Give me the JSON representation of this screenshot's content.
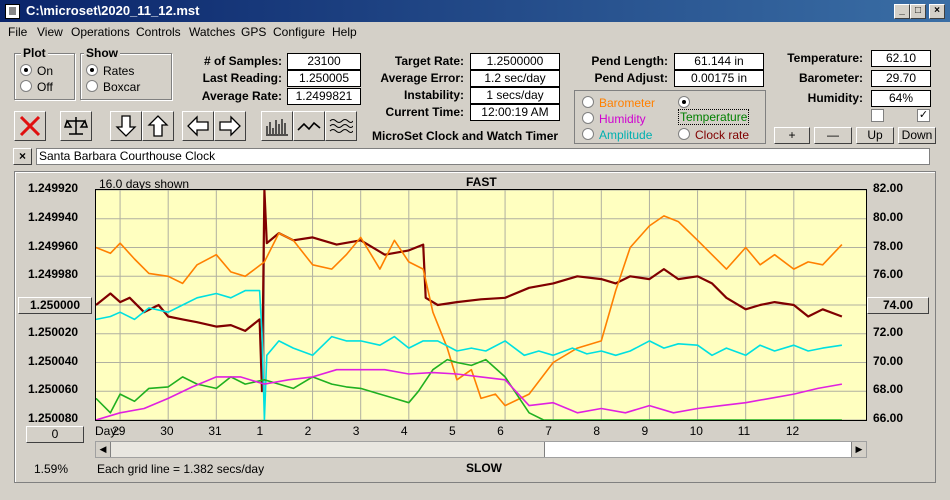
{
  "window": {
    "title": "C:\\microset\\2020_11_12.mst"
  },
  "menu": [
    "File",
    "View",
    "Operations",
    "Controls",
    "Watches",
    "GPS",
    "Configure",
    "Help"
  ],
  "plot_group": {
    "title": "Plot",
    "options": [
      "On",
      "Off"
    ],
    "selected": "On"
  },
  "show_group": {
    "title": "Show",
    "options": [
      "Rates",
      "Boxcar"
    ],
    "selected": "Rates"
  },
  "stats": [
    {
      "label": "# of Samples:",
      "value": "23100"
    },
    {
      "label": "Last Reading:",
      "value": "1.250005"
    },
    {
      "label": "Average Rate:",
      "value": "1.2499821"
    }
  ],
  "rates": [
    {
      "label": "Target Rate:",
      "value": "1.2500000"
    },
    {
      "label": "Average Error:",
      "value": "1.2 sec/day"
    },
    {
      "label": "Instability:",
      "value": "1 secs/day"
    },
    {
      "label": "Current Time:",
      "value": "12:00:19 AM"
    }
  ],
  "pend": [
    {
      "label": "Pend Length:",
      "value": "61.144 in"
    },
    {
      "label": "Pend Adjust:",
      "value": "0.00175 in"
    }
  ],
  "env": [
    {
      "label": "Temperature:",
      "value": "62.10"
    },
    {
      "label": "Barometer:",
      "value": "29.70"
    },
    {
      "label": "Humidity:",
      "value": "64%"
    }
  ],
  "app_caption": "MicroSet Clock and Watch Timer",
  "aux_options": [
    {
      "label": "Barometer",
      "color": "#ff8000",
      "selected": false
    },
    {
      "label": "Temperature",
      "color": "#008000",
      "selected": true
    },
    {
      "label": "Humidity",
      "color": "#d000d0",
      "selected": false
    },
    {
      "label": "Clock rate",
      "color": "#800000",
      "selected": false
    },
    {
      "label": "Amplitude",
      "color": "#00b0b0",
      "selected": false
    }
  ],
  "adjust_buttons": [
    "+",
    "—",
    "Up",
    "Down"
  ],
  "checkboxes": [
    {
      "checked": false
    },
    {
      "checked": true
    }
  ],
  "clock_name": "Santa Barbara Courthouse Clock",
  "chart_data": {
    "type": "line",
    "top_label": "FAST",
    "bottom_label": "SLOW",
    "days_shown": "16.0 days shown",
    "grid_note": "Each grid line = 1.382 secs/day",
    "percent": "1.59%",
    "x_label": "Day:",
    "x_ticks": [
      "29",
      "30",
      "31",
      "1",
      "2",
      "3",
      "4",
      "5",
      "6",
      "7",
      "8",
      "9",
      "10",
      "11",
      "12"
    ],
    "left_ticks": [
      "1.249920",
      "1.249940",
      "1.249960",
      "1.249980",
      "1.250000",
      "1.250020",
      "1.250040",
      "1.250060",
      "1.250080"
    ],
    "right_ticks": [
      "82.00",
      "80.00",
      "78.00",
      "76.00",
      "74.00",
      "72.00",
      "70.00",
      "68.00",
      "66.00"
    ],
    "left_center_button": "1.250000",
    "right_center_button": "74.00",
    "left_zero_button": "0",
    "left_range": [
      1.24992,
      1.25008
    ],
    "right_range": [
      82,
      66
    ],
    "x_range": [
      28.5,
      44.5
    ],
    "series": [
      {
        "name": "Clock rate",
        "color": "#800000",
        "x": [
          28.5,
          28.8,
          29.0,
          29.2,
          29.5,
          29.8,
          30.0,
          30.3,
          30.6,
          31.0,
          31.3,
          31.6,
          31.9,
          31.95,
          32.0,
          32.05,
          32.3,
          32.6,
          33.0,
          33.5,
          34.0,
          34.5,
          35.0,
          35.3,
          35.35,
          35.6,
          36.0,
          36.5,
          37.0,
          37.5,
          38.0,
          38.5,
          39.0,
          39.3,
          39.6,
          40.0,
          40.3,
          40.6,
          41.0,
          41.3,
          41.6,
          42.0,
          42.3,
          42.6,
          43.0,
          43.3,
          43.6,
          44.0
        ],
        "y": [
          1.25,
          1.249992,
          1.249998,
          1.249995,
          1.250005,
          1.25,
          1.250008,
          1.25001,
          1.250012,
          1.250015,
          1.250014,
          1.250018,
          1.25001,
          1.25006,
          1.24992,
          1.249957,
          1.24995,
          1.249955,
          1.249953,
          1.249958,
          1.249955,
          1.249965,
          1.249962,
          1.249958,
          1.249995,
          1.25,
          1.249998,
          1.249996,
          1.249995,
          1.249988,
          1.249985,
          1.24998,
          1.249982,
          1.249985,
          1.24998,
          1.249982,
          1.249975,
          1.249982,
          1.24998,
          1.249985,
          1.249995,
          1.250003,
          1.25,
          1.249998,
          1.25,
          1.250008,
          1.250003,
          1.250008
        ]
      },
      {
        "name": "Barometer",
        "color": "#ff8000",
        "x": [
          28.5,
          28.8,
          29.0,
          29.3,
          29.6,
          30.0,
          30.3,
          30.6,
          31.0,
          31.3,
          31.6,
          32.0,
          32.3,
          32.6,
          33.0,
          33.4,
          33.7,
          34.0,
          34.4,
          34.7,
          35.0,
          35.3,
          35.5,
          35.8,
          36.0,
          36.3,
          36.5,
          36.8,
          37.0,
          37.5,
          38.0,
          38.5,
          39.0,
          39.3,
          39.6,
          40.0,
          40.3,
          40.6,
          41.0,
          41.3,
          41.6,
          42.0,
          42.3,
          42.6,
          43.0,
          43.3,
          43.6,
          44.0
        ],
        "y": [
          78.0,
          77.6,
          78.3,
          77.2,
          76.2,
          76.0,
          75.5,
          76.8,
          77.5,
          76.3,
          76.0,
          77.0,
          79.0,
          78.5,
          76.8,
          76.5,
          77.5,
          78.7,
          76.5,
          78.5,
          77.0,
          76.5,
          73.5,
          71.0,
          68.8,
          69.5,
          67.5,
          67.8,
          67.0,
          67.8,
          70.0,
          71.0,
          71.5,
          75.0,
          78.0,
          79.5,
          80.2,
          79.8,
          78.5,
          77.5,
          76.5,
          78.0,
          76.8,
          77.5,
          76.5,
          77.0,
          76.8,
          78.2
        ]
      },
      {
        "name": "Amplitude",
        "color": "#00e0e0",
        "x": [
          28.5,
          28.8,
          29.0,
          29.3,
          29.6,
          30.0,
          30.3,
          30.6,
          31.0,
          31.3,
          31.6,
          31.9,
          31.95,
          32.0,
          32.05,
          32.3,
          32.6,
          33.0,
          33.4,
          33.7,
          34.0,
          34.4,
          34.7,
          35.0,
          35.3,
          35.6,
          36.0,
          36.3,
          36.6,
          37.0,
          37.4,
          37.7,
          38.0,
          38.4,
          38.7,
          39.0,
          39.3,
          39.6,
          40.0,
          40.3,
          40.6,
          41.0,
          41.3,
          41.6,
          42.0,
          42.3,
          42.6,
          43.0,
          43.3,
          43.6,
          44.0
        ],
        "y": [
          73.0,
          73.2,
          73.5,
          73.0,
          73.8,
          73.5,
          74.0,
          74.5,
          74.8,
          74.5,
          75.0,
          75.0,
          72.0,
          66.0,
          70.5,
          71.5,
          71.0,
          70.5,
          71.8,
          71.5,
          71.5,
          71.2,
          71.8,
          71.0,
          71.5,
          71.5,
          70.8,
          71.0,
          70.8,
          71.5,
          70.5,
          70.8,
          70.5,
          71.0,
          70.6,
          70.8,
          70.5,
          70.8,
          71.5,
          71.0,
          71.3,
          71.2,
          70.5,
          71.0,
          70.5,
          71.2,
          70.8,
          71.2,
          70.8,
          71.0,
          71.2
        ]
      },
      {
        "name": "Temperature",
        "color": "#20b020",
        "x": [
          28.5,
          28.8,
          29.0,
          29.3,
          29.6,
          30.0,
          30.3,
          30.6,
          31.0,
          31.3,
          31.6,
          32.0,
          32.3,
          32.6,
          33.0,
          33.4,
          33.7,
          34.0,
          34.4,
          34.7,
          35.0,
          35.2,
          35.5,
          35.8,
          36.0,
          36.3,
          36.6,
          37.0,
          37.2,
          37.5,
          37.8,
          38.0,
          39.0,
          40.0,
          41.0,
          42.0,
          43.0,
          44.0
        ],
        "y": [
          67.5,
          66.5,
          67.8,
          67.3,
          68.2,
          68.3,
          69.0,
          68.5,
          68.2,
          69.0,
          68.5,
          68.8,
          68.5,
          68.2,
          69.0,
          68.5,
          68.3,
          68.2,
          67.8,
          67.5,
          67.2,
          68.0,
          69.5,
          70.2,
          70.0,
          69.8,
          70.2,
          69.0,
          68.0,
          66.5,
          66.0,
          66.0,
          66.0,
          66.0,
          66.0,
          66.0,
          66.0,
          66.0
        ]
      },
      {
        "name": "Humidity",
        "color": "#e020e0",
        "x": [
          28.5,
          29.0,
          29.5,
          30.0,
          30.5,
          31.0,
          31.5,
          32.0,
          32.5,
          33.0,
          33.5,
          34.0,
          34.5,
          35.0,
          35.5,
          36.0,
          36.5,
          37.0,
          37.5,
          38.0,
          38.5,
          39.0,
          39.5,
          40.0,
          40.5,
          41.0,
          41.5,
          42.0,
          42.5,
          43.0,
          43.5,
          44.0
        ],
        "y": [
          66.0,
          66.5,
          66.8,
          67.5,
          68.3,
          69.0,
          69.0,
          68.5,
          68.8,
          69.0,
          69.5,
          69.5,
          69.5,
          69.2,
          69.3,
          69.2,
          69.0,
          68.8,
          67.0,
          67.2,
          66.5,
          66.8,
          66.5,
          67.0,
          66.5,
          66.8,
          67.0,
          67.2,
          67.5,
          67.8,
          68.2,
          68.5
        ]
      }
    ]
  }
}
